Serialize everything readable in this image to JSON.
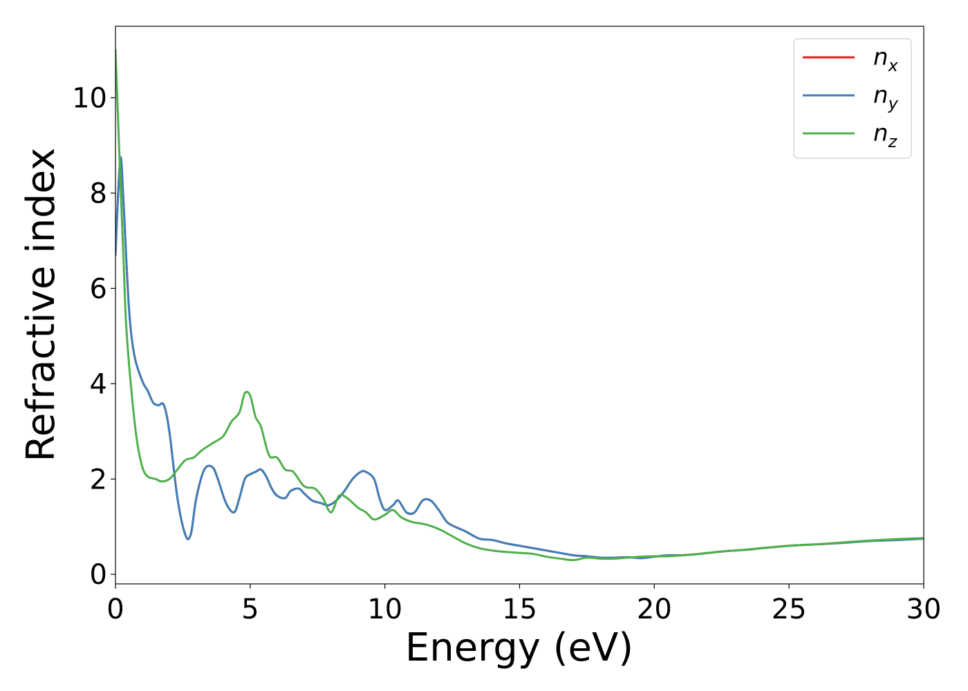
{
  "chart_data": {
    "type": "line",
    "xlabel": "Energy (eV)",
    "ylabel": "Refractive index",
    "xlim": [
      0,
      30
    ],
    "ylim": [
      -0.2,
      11.5
    ],
    "xticks": [
      0,
      5,
      10,
      15,
      20,
      25,
      30
    ],
    "yticks": [
      0,
      2,
      4,
      6,
      8,
      10
    ],
    "grid": false,
    "legend_position": "top-right",
    "series": [
      {
        "name": "n_x",
        "label_base": "n",
        "label_sub": "x",
        "color": "#e41a1c",
        "x": [
          0,
          0.1,
          0.2,
          0.3,
          0.5,
          0.7,
          1.0,
          1.2,
          1.4,
          1.6,
          1.8,
          2.0,
          2.3,
          2.6,
          2.8,
          3.0,
          3.3,
          3.6,
          3.8,
          4.1,
          4.4,
          4.6,
          4.8,
          5.0,
          5.2,
          5.4,
          5.6,
          5.8,
          6.0,
          6.3,
          6.5,
          6.8,
          7.0,
          7.3,
          7.6,
          7.9,
          8.2,
          8.5,
          8.8,
          9.1,
          9.3,
          9.6,
          9.8,
          10.0,
          10.3,
          10.5,
          10.8,
          11.1,
          11.4,
          11.7,
          12.0,
          12.3,
          12.6,
          13.0,
          13.5,
          14.0,
          14.5,
          15.0,
          15.5,
          16.0,
          16.5,
          17.0,
          17.5,
          18.0,
          18.5,
          19.0,
          19.5,
          20.0,
          20.5,
          21.0,
          21.5,
          22.0,
          22.5,
          23.0,
          23.5,
          24.0,
          25.0,
          26.0,
          27.0,
          28.0,
          29.0,
          30.0
        ],
        "y": [
          6.7,
          8.0,
          8.75,
          7.8,
          5.6,
          4.6,
          4.05,
          3.85,
          3.6,
          3.55,
          3.55,
          3.0,
          1.6,
          0.82,
          0.85,
          1.6,
          2.2,
          2.25,
          2.0,
          1.5,
          1.3,
          1.6,
          2.0,
          2.1,
          2.15,
          2.2,
          2.05,
          1.8,
          1.65,
          1.6,
          1.75,
          1.8,
          1.7,
          1.55,
          1.5,
          1.45,
          1.55,
          1.75,
          2.0,
          2.15,
          2.15,
          2.0,
          1.6,
          1.35,
          1.45,
          1.55,
          1.3,
          1.3,
          1.55,
          1.55,
          1.35,
          1.1,
          1.0,
          0.9,
          0.75,
          0.72,
          0.65,
          0.6,
          0.55,
          0.5,
          0.45,
          0.4,
          0.38,
          0.35,
          0.35,
          0.36,
          0.34,
          0.37,
          0.4,
          0.4,
          0.42,
          0.45,
          0.48,
          0.5,
          0.52,
          0.55,
          0.6,
          0.63,
          0.66,
          0.7,
          0.72,
          0.75
        ]
      },
      {
        "name": "n_y",
        "label_base": "n",
        "label_sub": "y",
        "color": "#3d7fb8",
        "x": [
          0,
          0.1,
          0.2,
          0.3,
          0.5,
          0.7,
          1.0,
          1.2,
          1.4,
          1.6,
          1.8,
          2.0,
          2.3,
          2.6,
          2.8,
          3.0,
          3.3,
          3.6,
          3.8,
          4.1,
          4.4,
          4.6,
          4.8,
          5.0,
          5.2,
          5.4,
          5.6,
          5.8,
          6.0,
          6.3,
          6.5,
          6.8,
          7.0,
          7.3,
          7.6,
          7.9,
          8.2,
          8.5,
          8.8,
          9.1,
          9.3,
          9.6,
          9.8,
          10.0,
          10.3,
          10.5,
          10.8,
          11.1,
          11.4,
          11.7,
          12.0,
          12.3,
          12.6,
          13.0,
          13.5,
          14.0,
          14.5,
          15.0,
          15.5,
          16.0,
          16.5,
          17.0,
          17.5,
          18.0,
          18.5,
          19.0,
          19.5,
          20.0,
          20.5,
          21.0,
          21.5,
          22.0,
          22.5,
          23.0,
          23.5,
          24.0,
          25.0,
          26.0,
          27.0,
          28.0,
          29.0,
          30.0
        ],
        "y": [
          6.7,
          8.0,
          8.75,
          7.8,
          5.6,
          4.6,
          4.05,
          3.85,
          3.6,
          3.55,
          3.55,
          3.0,
          1.6,
          0.82,
          0.85,
          1.6,
          2.2,
          2.25,
          2.0,
          1.5,
          1.3,
          1.6,
          2.0,
          2.1,
          2.15,
          2.2,
          2.05,
          1.8,
          1.65,
          1.6,
          1.75,
          1.8,
          1.7,
          1.55,
          1.5,
          1.45,
          1.55,
          1.75,
          2.0,
          2.15,
          2.15,
          2.0,
          1.6,
          1.35,
          1.45,
          1.55,
          1.3,
          1.3,
          1.55,
          1.55,
          1.35,
          1.1,
          1.0,
          0.9,
          0.75,
          0.72,
          0.65,
          0.6,
          0.55,
          0.5,
          0.45,
          0.4,
          0.38,
          0.35,
          0.35,
          0.36,
          0.34,
          0.37,
          0.4,
          0.4,
          0.42,
          0.45,
          0.48,
          0.5,
          0.52,
          0.55,
          0.6,
          0.63,
          0.66,
          0.7,
          0.72,
          0.75
        ]
      },
      {
        "name": "n_z",
        "label_base": "n",
        "label_sub": "z",
        "color": "#4daf4a",
        "x": [
          0,
          0.1,
          0.2,
          0.3,
          0.4,
          0.6,
          0.8,
          1.0,
          1.2,
          1.5,
          1.7,
          2.0,
          2.3,
          2.6,
          2.9,
          3.2,
          3.6,
          4.0,
          4.3,
          4.6,
          4.8,
          5.0,
          5.2,
          5.4,
          5.7,
          6.0,
          6.3,
          6.6,
          7.0,
          7.4,
          7.7,
          8.0,
          8.3,
          8.6,
          9.0,
          9.3,
          9.6,
          10.0,
          10.3,
          10.6,
          11.0,
          11.5,
          12.0,
          12.5,
          13.0,
          13.5,
          14.0,
          14.5,
          15.0,
          15.5,
          16.0,
          16.5,
          17.0,
          17.5,
          18.0,
          18.5,
          19.0,
          19.5,
          20.0,
          20.5,
          21.0,
          21.5,
          22.0,
          22.5,
          23.0,
          24.0,
          25.0,
          26.0,
          27.0,
          28.0,
          29.0,
          30.0
        ],
        "y": [
          11.0,
          9.5,
          8.0,
          6.6,
          5.2,
          3.8,
          2.8,
          2.25,
          2.05,
          2.0,
          1.95,
          2.0,
          2.2,
          2.4,
          2.45,
          2.6,
          2.75,
          2.9,
          3.2,
          3.4,
          3.8,
          3.75,
          3.3,
          3.1,
          2.5,
          2.45,
          2.2,
          2.15,
          1.85,
          1.8,
          1.6,
          1.3,
          1.65,
          1.6,
          1.4,
          1.3,
          1.15,
          1.25,
          1.35,
          1.2,
          1.1,
          1.05,
          0.95,
          0.8,
          0.65,
          0.55,
          0.5,
          0.47,
          0.45,
          0.43,
          0.37,
          0.33,
          0.3,
          0.35,
          0.33,
          0.33,
          0.35,
          0.37,
          0.38,
          0.38,
          0.4,
          0.42,
          0.45,
          0.48,
          0.5,
          0.55,
          0.6,
          0.63,
          0.67,
          0.71,
          0.74,
          0.76
        ]
      }
    ]
  }
}
